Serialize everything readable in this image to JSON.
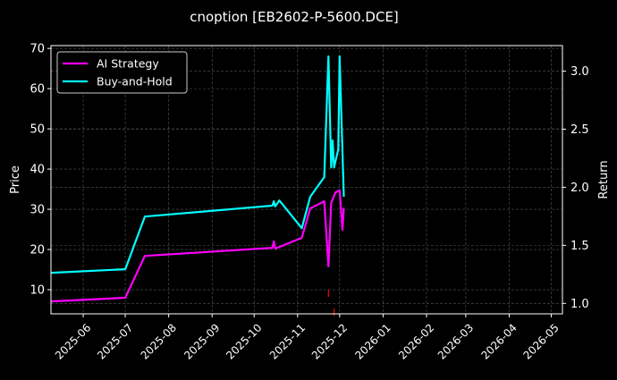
{
  "chart_data": {
    "type": "line",
    "title": "cnoption [EB2602-P-5600.DCE]",
    "ylabel": "Price",
    "y2label": "Return",
    "xlim": [
      "2025-05-09",
      "2026-05-09"
    ],
    "ylim": [
      4,
      70.7
    ],
    "y2lim": [
      0.91,
      3.22
    ],
    "grid": true,
    "legend_position": "top-left",
    "x_ticks": [
      "2025-06-01",
      "2025-07-01",
      "2025-08-01",
      "2025-09-01",
      "2025-10-01",
      "2025-11-01",
      "2025-12-01",
      "2026-01-01",
      "2026-02-01",
      "2026-03-01",
      "2026-04-01",
      "2026-05-01"
    ],
    "x_tick_labels": [
      "2025-06",
      "2025-07",
      "2025-08",
      "2025-09",
      "2025-10",
      "2025-11",
      "2025-12",
      "2026-01",
      "2026-02",
      "2026-03",
      "2026-04",
      "2026-05"
    ],
    "y_ticks": [
      10,
      20,
      30,
      40,
      50,
      60,
      70
    ],
    "y2_ticks": [
      "1.0",
      "1.5",
      "2.0",
      "2.5",
      "3.0"
    ],
    "series": [
      {
        "name": "AI Strategy",
        "color": "#ff00ff",
        "x": [
          "2025-05-09",
          "2025-07-01",
          "2025-07-15",
          "2025-10-14",
          "2025-10-15",
          "2025-10-16",
          "2025-11-04",
          "2025-11-10",
          "2025-11-20",
          "2025-11-23",
          "2025-11-25",
          "2025-11-28",
          "2025-12-01",
          "2025-12-03",
          "2025-12-04"
        ],
        "y": [
          7.1,
          8.0,
          18.4,
          20.4,
          22.0,
          20.2,
          22.9,
          30.2,
          32.0,
          15.8,
          31.6,
          34.2,
          34.7,
          24.9,
          30.4
        ]
      },
      {
        "name": "Buy-and-Hold",
        "color": "#00ffff",
        "x": [
          "2025-05-09",
          "2025-07-01",
          "2025-07-15",
          "2025-10-14",
          "2025-10-15",
          "2025-10-16",
          "2025-10-19",
          "2025-11-04",
          "2025-11-10",
          "2025-11-20",
          "2025-11-23",
          "2025-11-25",
          "2025-11-26",
          "2025-11-27",
          "2025-11-30",
          "2025-12-01",
          "2025-12-04"
        ],
        "y": [
          14.2,
          15.1,
          28.2,
          30.9,
          32.0,
          30.7,
          32.2,
          25.3,
          33.1,
          38.0,
          68.0,
          40.4,
          47.1,
          40.4,
          44.9,
          68.0,
          33.1
        ]
      }
    ],
    "markers": {
      "color": "#ff0000",
      "x": [
        "2025-11-23",
        "2025-11-27"
      ],
      "y": [
        9.1,
        4.4
      ]
    }
  }
}
